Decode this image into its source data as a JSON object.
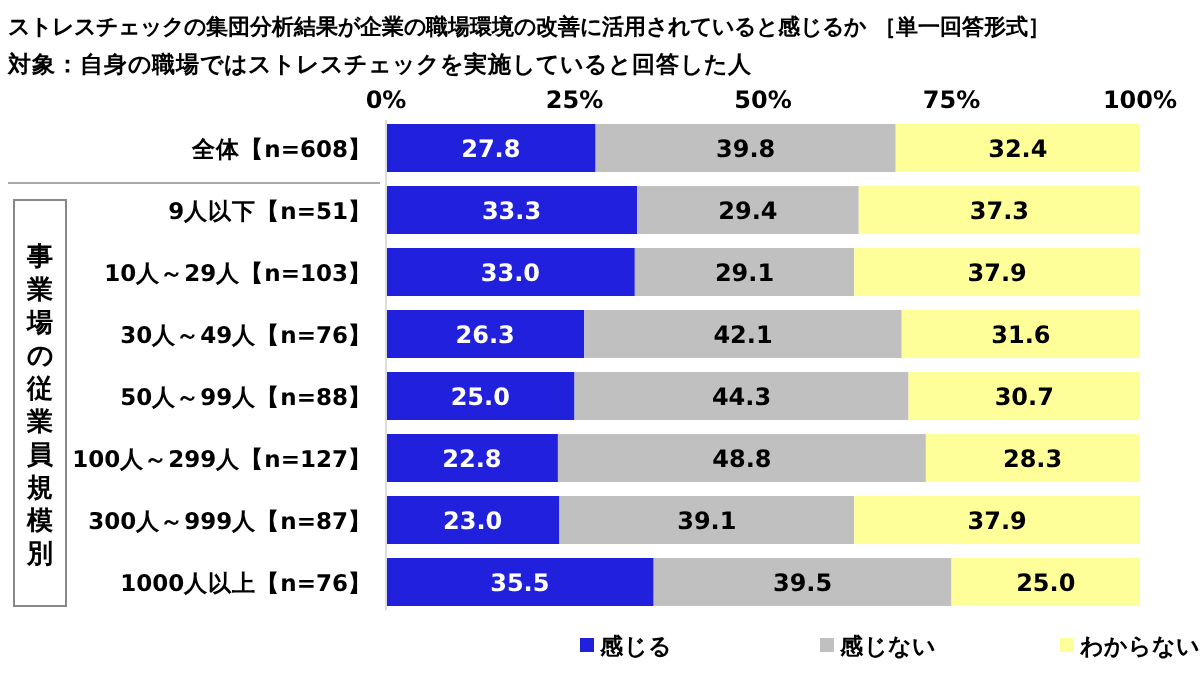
{
  "chart_data": {
    "type": "bar",
    "orientation": "horizontal",
    "stacked": true,
    "title": "ストレスチェックの集団分析結果が企業の職場環境の改善に活用されていると感じるか ［単一回答形式］",
    "subtitle": "対象：自身の職場ではストレスチェックを実施していると回答した人",
    "annotations": [
      "事業場の従業員規模別"
    ],
    "categories": [
      "全体【n=608】",
      "9人以下【n=51】",
      "10人～29人【n=103】",
      "30人～49人【n=76】",
      "50人～99人【n=88】",
      "100人～299人【n=127】",
      "300人～999人【n=87】",
      "1000人以上【n=76】"
    ],
    "series": [
      {
        "name": "感じる",
        "color": "#2121dd",
        "values": [
          27.8,
          33.3,
          33.0,
          26.3,
          25.0,
          22.8,
          23.0,
          35.5
        ],
        "value_labels": [
          "27.8",
          "33.3",
          "33.0",
          "26.3",
          "25.0",
          "22.8",
          "23.0",
          "35.5"
        ]
      },
      {
        "name": "感じない",
        "color": "#c0c0c0",
        "values": [
          39.8,
          29.4,
          29.1,
          42.1,
          44.3,
          48.8,
          39.1,
          39.5
        ],
        "value_labels": [
          "39.8",
          "29.4",
          "29.1",
          "42.1",
          "44.3",
          "48.8",
          "39.1",
          "39.5"
        ]
      },
      {
        "name": "わからない",
        "color": "#ffff99",
        "values": [
          32.4,
          37.3,
          37.9,
          31.6,
          30.7,
          28.3,
          37.9,
          25.0
        ],
        "value_labels": [
          "32.4",
          "37.3",
          "37.9",
          "31.6",
          "30.7",
          "28.3",
          "37.9",
          "25.0"
        ]
      }
    ],
    "xlim": [
      0,
      100
    ],
    "xticks": [
      {
        "value": 0,
        "label": "0%"
      },
      {
        "value": 25,
        "label": "25%"
      },
      {
        "value": 50,
        "label": "50%"
      },
      {
        "value": 75,
        "label": "75%"
      },
      {
        "value": 100,
        "label": "100%"
      }
    ],
    "legend": "bottom right"
  }
}
